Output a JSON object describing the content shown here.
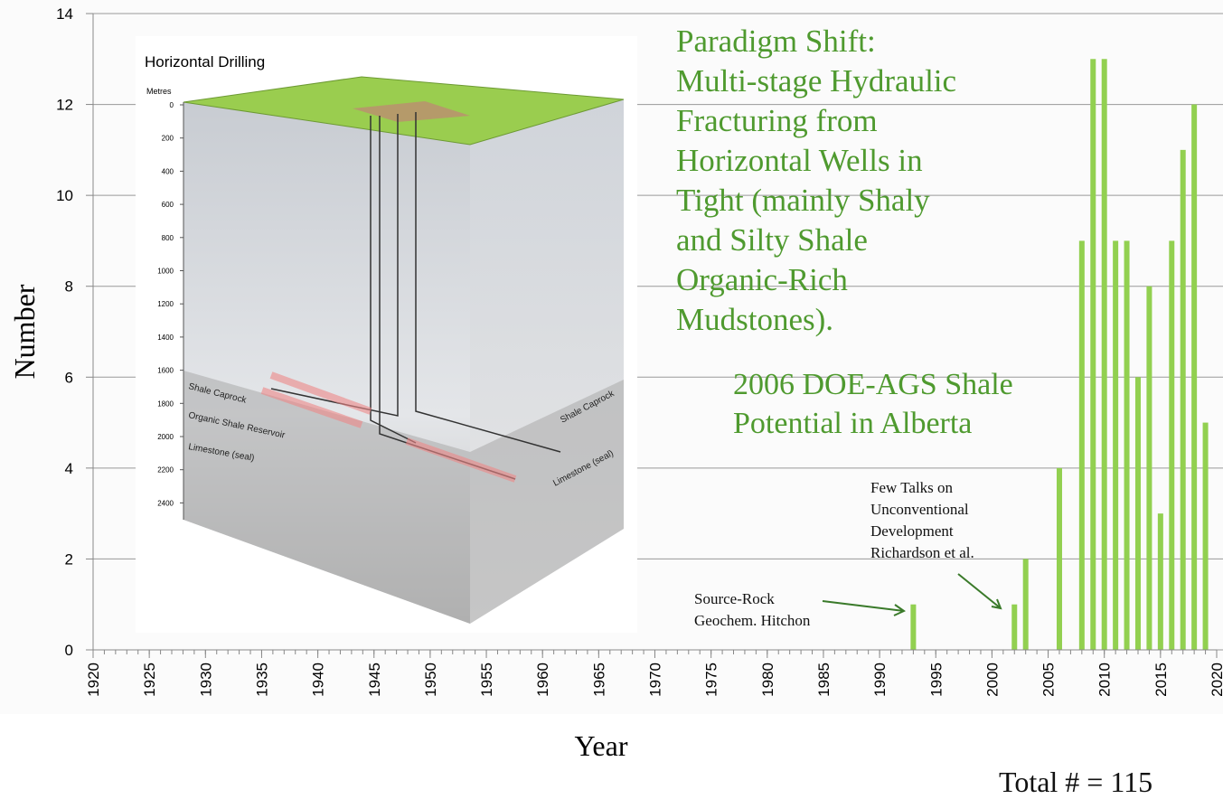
{
  "chart_data": {
    "type": "bar",
    "x": [
      1993,
      2002,
      2003,
      2006,
      2008,
      2009,
      2010,
      2011,
      2012,
      2013,
      2014,
      2015,
      2016,
      2017,
      2018,
      2019
    ],
    "values": [
      1,
      1,
      2,
      4,
      9,
      13,
      13,
      9,
      9,
      6,
      8,
      3,
      9,
      11,
      12,
      5
    ],
    "color": "#92d050",
    "xlim": [
      1920,
      2020
    ],
    "xticks": [
      1920,
      1925,
      1930,
      1935,
      1940,
      1945,
      1950,
      1955,
      1960,
      1965,
      1970,
      1975,
      1980,
      1985,
      1990,
      1995,
      2000,
      2005,
      2010,
      2015,
      2020
    ],
    "ylim": [
      0,
      14
    ],
    "yticks": [
      0,
      2,
      4,
      6,
      8,
      10,
      12,
      14
    ],
    "grid": true,
    "xlabel": "Year",
    "ylabel": "Number",
    "annotations": [
      {
        "lines": [
          "Paradigm Shift:",
          "Multi-stage Hydraulic",
          "Fracturing from",
          "Horizontal Wells in",
          "Tight (mainly Shaly",
          "and Silty Shale",
          "Organic-Rich",
          "Mudstones)."
        ]
      },
      {
        "lines": [
          "2006 DOE-AGS Shale",
          "Potential in Alberta"
        ]
      },
      {
        "lines": [
          "Source-Rock",
          "Geochem. Hitchon"
        ]
      },
      {
        "lines": [
          "Few Talks on",
          "Unconventional",
          "Development",
          "Richardson et al."
        ]
      },
      {
        "lines": [
          "Total # = 115"
        ]
      }
    ]
  },
  "inset": {
    "title": "Horizontal Drilling",
    "depth_unit": "Metres",
    "depths": [
      0,
      200,
      400,
      600,
      800,
      1000,
      1200,
      1400,
      1600,
      1800,
      2000,
      2200,
      2400
    ],
    "layers": [
      "Shale Caprock",
      "Organic Shale Reservoir",
      "Limestone (seal)",
      "Shale Caprock",
      "Limestone (seal)"
    ]
  }
}
